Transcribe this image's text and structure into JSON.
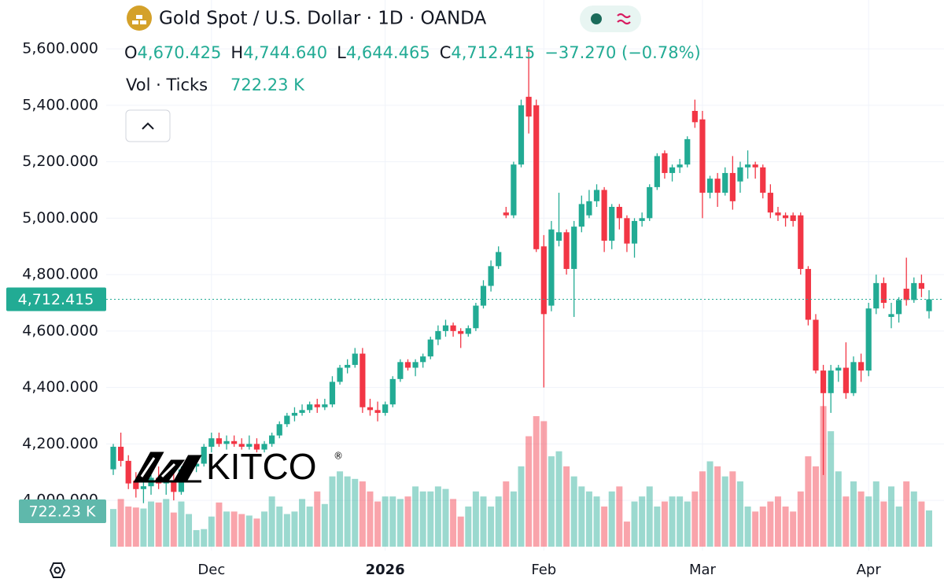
{
  "chart_data": {
    "type": "candlestick",
    "title": "Gold Spot / U.S. Dollar · 1D · OANDA",
    "legend": {
      "labels": [
        "O",
        "H",
        "L",
        "C"
      ],
      "values": [
        "4,670.425",
        "4,744.640",
        "4,644.465",
        "4,712.415"
      ],
      "change": "−37.270 (−0.78%)"
    },
    "last_price_label": "4,712.415",
    "up_color": "#22ab94",
    "down_color": "#f23645",
    "grid": true,
    "ylim": [
      3822,
      5773
    ],
    "yticks": [
      {
        "value": 4000,
        "label": "4,000.000"
      },
      {
        "value": 4200,
        "label": "4,200.000"
      },
      {
        "value": 4400,
        "label": "4,400.000"
      },
      {
        "value": 4600,
        "label": "4,600.000"
      },
      {
        "value": 4800,
        "label": "4,800.000"
      },
      {
        "value": 5000,
        "label": "5,000.000"
      },
      {
        "value": 5200,
        "label": "5,200.000"
      },
      {
        "value": 5400,
        "label": "5,400.000"
      },
      {
        "value": 5600,
        "label": "5,600.000"
      }
    ],
    "categories": [
      null,
      null,
      null,
      null,
      null,
      null,
      null,
      null,
      null,
      null,
      null,
      null,
      null,
      "Dec",
      null,
      null,
      null,
      null,
      null,
      null,
      null,
      null,
      null,
      null,
      null,
      null,
      null,
      null,
      null,
      null,
      null,
      null,
      null,
      null,
      null,
      null,
      "2026",
      null,
      null,
      null,
      null,
      null,
      null,
      null,
      null,
      null,
      null,
      null,
      null,
      null,
      null,
      null,
      null,
      null,
      null,
      null,
      null,
      "Feb",
      null,
      null,
      null,
      null,
      null,
      null,
      null,
      null,
      null,
      null,
      null,
      null,
      null,
      null,
      null,
      null,
      null,
      null,
      null,
      null,
      "Mar",
      null,
      null,
      null,
      null,
      null,
      null,
      null,
      null,
      null,
      null,
      null,
      null,
      null,
      null,
      null,
      null,
      null,
      null,
      null,
      null,
      null,
      "Apr",
      null,
      null,
      null,
      null,
      null,
      null,
      null,
      null
    ],
    "open": [
      4110,
      4190,
      4140,
      4070,
      4040,
      4050,
      4080,
      4060,
      4070,
      4030,
      4110,
      4120,
      4130,
      4190,
      4220,
      4200,
      4210,
      4200,
      4190,
      4200,
      4180,
      4200,
      4230,
      4270,
      4300,
      4310,
      4320,
      4340,
      4330,
      4340,
      4420,
      4470,
      4480,
      4520,
      4330,
      4320,
      4310,
      4340,
      4430,
      4490,
      4470,
      4490,
      4510,
      4570,
      4600,
      4620,
      4600,
      4590,
      4610,
      4690,
      4760,
      4830,
      5020,
      5010,
      5190,
      5430,
      5400,
      4900,
      4690,
      4920,
      4950,
      4820,
      4970,
      5010,
      5060,
      5100,
      4920,
      5040,
      5000,
      4910,
      4990,
      5000,
      5110,
      5230,
      5160,
      5180,
      5190,
      5380,
      5350,
      5090,
      5140,
      5090,
      5160,
      5130,
      5180,
      5190,
      5180,
      5090,
      5020,
      5010,
      5010,
      5010,
      4820,
      4640,
      4460,
      4380,
      4460,
      4470,
      4380,
      4490,
      4460,
      4680,
      4770,
      4650,
      4660,
      4750,
      4710,
      4770,
      4670.425
    ],
    "high": [
      4200,
      4240,
      4160,
      4100,
      4070,
      4090,
      4120,
      4100,
      4100,
      4120,
      4150,
      4140,
      4200,
      4240,
      4240,
      4230,
      4230,
      4220,
      4230,
      4220,
      4210,
      4240,
      4280,
      4310,
      4330,
      4340,
      4350,
      4360,
      4360,
      4440,
      4480,
      4500,
      4540,
      4540,
      4360,
      4350,
      4350,
      4440,
      4500,
      4500,
      4500,
      4520,
      4580,
      4620,
      4640,
      4630,
      4610,
      4620,
      4700,
      4780,
      4850,
      4900,
      5040,
      5200,
      5420,
      5600,
      5420,
      4940,
      4990,
      5090,
      4960,
      4990,
      5080,
      5100,
      5120,
      5110,
      5050,
      5050,
      5010,
      5000,
      5020,
      5120,
      5230,
      5240,
      5190,
      5210,
      5290,
      5420,
      5380,
      5150,
      5160,
      5180,
      5220,
      5200,
      5240,
      5200,
      5190,
      5120,
      5040,
      5020,
      5020,
      5020,
      4830,
      4660,
      4480,
      4480,
      4480,
      4560,
      4510,
      4520,
      4700,
      4800,
      4790,
      4700,
      4720,
      4860,
      4790,
      4800,
      4744.64
    ],
    "low": [
      4090,
      4120,
      4040,
      4010,
      3990,
      4020,
      4040,
      4020,
      4000,
      4020,
      4100,
      4100,
      4120,
      4170,
      4190,
      4180,
      4190,
      4180,
      4180,
      4170,
      4170,
      4190,
      4220,
      4260,
      4280,
      4300,
      4310,
      4310,
      4320,
      4330,
      4410,
      4450,
      4470,
      4310,
      4300,
      4280,
      4300,
      4330,
      4420,
      4460,
      4440,
      4470,
      4500,
      4550,
      4580,
      4580,
      4540,
      4580,
      4600,
      4680,
      4740,
      4820,
      5000,
      5000,
      5180,
      5300,
      4880,
      4400,
      4670,
      4900,
      4800,
      4650,
      4950,
      5000,
      5040,
      4880,
      4890,
      4960,
      4880,
      4860,
      4970,
      4990,
      5100,
      5140,
      5130,
      5160,
      5180,
      5320,
      5000,
      5070,
      5040,
      5080,
      5030,
      5090,
      5140,
      5140,
      5070,
      5000,
      4990,
      4970,
      4970,
      4800,
      4620,
      4450,
      4090,
      4310,
      4420,
      4360,
      4370,
      4420,
      4440,
      4660,
      4680,
      4610,
      4630,
      4690,
      4700,
      4720,
      4644.465
    ],
    "close": [
      4190,
      4140,
      4060,
      4040,
      4050,
      4080,
      4060,
      4070,
      4030,
      4110,
      4120,
      4130,
      4190,
      4220,
      4200,
      4210,
      4200,
      4190,
      4200,
      4180,
      4200,
      4230,
      4270,
      4300,
      4310,
      4320,
      4340,
      4330,
      4340,
      4420,
      4470,
      4480,
      4520,
      4330,
      4320,
      4310,
      4340,
      4430,
      4490,
      4470,
      4490,
      4510,
      4570,
      4600,
      4620,
      4600,
      4590,
      4610,
      4690,
      4760,
      4830,
      4880,
      5010,
      5190,
      5400,
      5360,
      4890,
      4660,
      4960,
      4950,
      4820,
      4970,
      5050,
      5060,
      5100,
      4920,
      5040,
      5000,
      4910,
      4990,
      5000,
      5110,
      5220,
      5160,
      5180,
      5190,
      5280,
      5340,
      5090,
      5140,
      5090,
      5160,
      5060,
      5180,
      5190,
      5180,
      5090,
      5020,
      5010,
      5000,
      4990,
      4820,
      4640,
      4460,
      4380,
      4460,
      4470,
      4380,
      4490,
      4460,
      4680,
      4770,
      4700,
      4660,
      4710,
      4710,
      4770,
      4749.685,
      4712.415
    ],
    "volume": {
      "name": "Vol · Ticks",
      "value_label": "722.23 K",
      "ylim": [
        0,
        3400
      ],
      "values": [
        750,
        950,
        800,
        780,
        760,
        900,
        880,
        950,
        680,
        900,
        650,
        330,
        350,
        600,
        880,
        700,
        700,
        650,
        620,
        560,
        700,
        1000,
        800,
        650,
        700,
        950,
        800,
        1100,
        850,
        1400,
        1500,
        1400,
        1350,
        1300,
        1100,
        900,
        1000,
        1000,
        950,
        1000,
        1200,
        1100,
        1100,
        1200,
        1150,
        950,
        600,
        800,
        1100,
        1000,
        800,
        1000,
        1300,
        1100,
        1600,
        2200,
        2600,
        2500,
        1800,
        1900,
        1600,
        1400,
        1200,
        1100,
        1000,
        800,
        1100,
        1200,
        500,
        900,
        1000,
        1200,
        800,
        900,
        1000,
        1000,
        900,
        1100,
        1500,
        1700,
        1600,
        1400,
        1500,
        1300,
        800,
        700,
        800,
        900,
        1000,
        800,
        700,
        1100,
        1800,
        1600,
        2800,
        2300,
        1500,
        1000,
        1300,
        1100,
        1000,
        1300,
        900,
        1200,
        800,
        1300,
        1100,
        900,
        722.23
      ]
    },
    "watermark": "KITCO",
    "watermark_mark": "®"
  }
}
